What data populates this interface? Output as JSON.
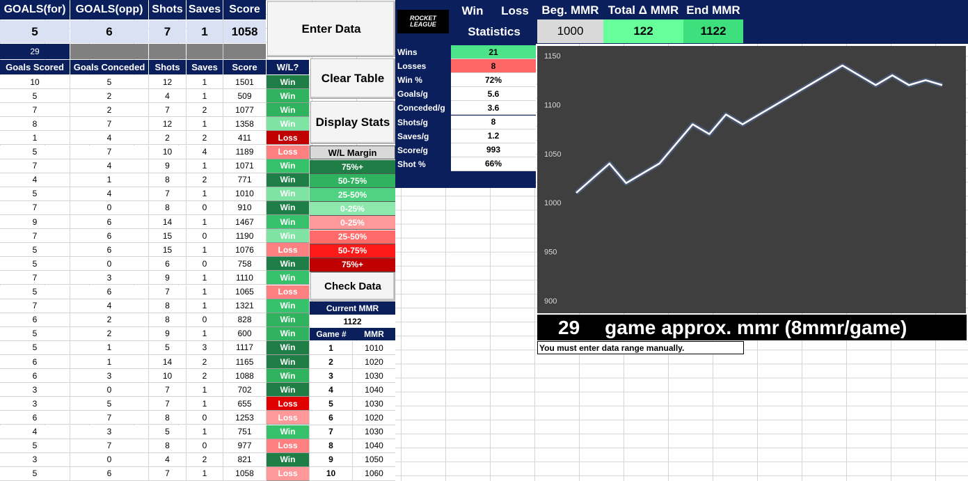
{
  "header": {
    "cols": [
      "GOALS(for)",
      "GOALS(opp)",
      "Shots",
      "Saves",
      "Score"
    ],
    "values": [
      "5",
      "6",
      "7",
      "1",
      "1058"
    ],
    "games_count": "29"
  },
  "table": {
    "cols": [
      "Goals Scored",
      "Goals Conceded",
      "Shots",
      "Saves",
      "Score",
      "W/L?"
    ],
    "rows": [
      {
        "gs": "10",
        "gc": "5",
        "sh": "12",
        "sv": "1",
        "sc": "1501",
        "wl": "Win",
        "color": "#1e7e45"
      },
      {
        "gs": "5",
        "gc": "2",
        "sh": "4",
        "sv": "1",
        "sc": "509",
        "wl": "Win",
        "color": "#2fb35e"
      },
      {
        "gs": "7",
        "gc": "2",
        "sh": "7",
        "sv": "2",
        "sc": "1077",
        "wl": "Win",
        "color": "#2fb35e"
      },
      {
        "gs": "8",
        "gc": "7",
        "sh": "12",
        "sv": "1",
        "sc": "1358",
        "wl": "Win",
        "color": "#7fe3a4"
      },
      {
        "gs": "1",
        "gc": "4",
        "sh": "2",
        "sv": "2",
        "sc": "411",
        "wl": "Loss",
        "color": "#c00000"
      },
      {
        "gs": "5",
        "gc": "7",
        "sh": "10",
        "sv": "4",
        "sc": "1189",
        "wl": "Loss",
        "color": "#ff8080"
      },
      {
        "gs": "7",
        "gc": "4",
        "sh": "9",
        "sv": "1",
        "sc": "1071",
        "wl": "Win",
        "color": "#36c26a"
      },
      {
        "gs": "4",
        "gc": "1",
        "sh": "8",
        "sv": "2",
        "sc": "771",
        "wl": "Win",
        "color": "#1e7e45"
      },
      {
        "gs": "5",
        "gc": "4",
        "sh": "7",
        "sv": "1",
        "sc": "1010",
        "wl": "Win",
        "color": "#7fe3a4"
      },
      {
        "gs": "7",
        "gc": "0",
        "sh": "8",
        "sv": "0",
        "sc": "910",
        "wl": "Win",
        "color": "#1e7e45"
      },
      {
        "gs": "9",
        "gc": "6",
        "sh": "14",
        "sv": "1",
        "sc": "1467",
        "wl": "Win",
        "color": "#36c26a"
      },
      {
        "gs": "7",
        "gc": "6",
        "sh": "15",
        "sv": "0",
        "sc": "1190",
        "wl": "Win",
        "color": "#7fe3a4"
      },
      {
        "gs": "5",
        "gc": "6",
        "sh": "15",
        "sv": "1",
        "sc": "1076",
        "wl": "Loss",
        "color": "#ff8080"
      },
      {
        "gs": "5",
        "gc": "0",
        "sh": "6",
        "sv": "0",
        "sc": "758",
        "wl": "Win",
        "color": "#1e7e45"
      },
      {
        "gs": "7",
        "gc": "3",
        "sh": "9",
        "sv": "1",
        "sc": "1110",
        "wl": "Win",
        "color": "#36c26a"
      },
      {
        "gs": "5",
        "gc": "6",
        "sh": "7",
        "sv": "1",
        "sc": "1065",
        "wl": "Loss",
        "color": "#ff8080"
      },
      {
        "gs": "7",
        "gc": "4",
        "sh": "8",
        "sv": "1",
        "sc": "1321",
        "wl": "Win",
        "color": "#36c26a"
      },
      {
        "gs": "6",
        "gc": "2",
        "sh": "8",
        "sv": "0",
        "sc": "828",
        "wl": "Win",
        "color": "#2fb35e"
      },
      {
        "gs": "5",
        "gc": "2",
        "sh": "9",
        "sv": "1",
        "sc": "600",
        "wl": "Win",
        "color": "#2fb35e"
      },
      {
        "gs": "5",
        "gc": "1",
        "sh": "5",
        "sv": "3",
        "sc": "1117",
        "wl": "Win",
        "color": "#1e7e45"
      },
      {
        "gs": "6",
        "gc": "1",
        "sh": "14",
        "sv": "2",
        "sc": "1165",
        "wl": "Win",
        "color": "#1e7e45"
      },
      {
        "gs": "6",
        "gc": "3",
        "sh": "10",
        "sv": "2",
        "sc": "1088",
        "wl": "Win",
        "color": "#2fb35e"
      },
      {
        "gs": "3",
        "gc": "0",
        "sh": "7",
        "sv": "1",
        "sc": "702",
        "wl": "Win",
        "color": "#1e7e45"
      },
      {
        "gs": "3",
        "gc": "5",
        "sh": "7",
        "sv": "1",
        "sc": "655",
        "wl": "Loss",
        "color": "#e00000"
      },
      {
        "gs": "6",
        "gc": "7",
        "sh": "8",
        "sv": "0",
        "sc": "1253",
        "wl": "Loss",
        "color": "#ff9999"
      },
      {
        "gs": "4",
        "gc": "3",
        "sh": "5",
        "sv": "1",
        "sc": "751",
        "wl": "Win",
        "color": "#36c26a"
      },
      {
        "gs": "5",
        "gc": "7",
        "sh": "8",
        "sv": "0",
        "sc": "977",
        "wl": "Loss",
        "color": "#ff8080"
      },
      {
        "gs": "3",
        "gc": "0",
        "sh": "4",
        "sv": "2",
        "sc": "821",
        "wl": "Win",
        "color": "#1e7e45"
      },
      {
        "gs": "5",
        "gc": "6",
        "sh": "7",
        "sv": "1",
        "sc": "1058",
        "wl": "Loss",
        "color": "#ff9999"
      }
    ]
  },
  "buttons": {
    "enter": "Enter Data",
    "clear": "Clear Table",
    "display": "Display Stats",
    "check": "Check Data"
  },
  "legend": {
    "title": "W/L Margin",
    "items": [
      {
        "label": "75%+",
        "color": "#1e7e45"
      },
      {
        "label": "50-75%",
        "color": "#2fb35e"
      },
      {
        "label": "25-50%",
        "color": "#4fd281"
      },
      {
        "label": "0-25%",
        "color": "#8ce8ac"
      },
      {
        "label": "0-25%",
        "color": "#ff9999"
      },
      {
        "label": "25-50%",
        "color": "#ff6b6b"
      },
      {
        "label": "50-75%",
        "color": "#ff1a1a"
      },
      {
        "label": "75%+",
        "color": "#c00000"
      }
    ]
  },
  "current_mmr": {
    "label": "Current MMR",
    "value": "1122",
    "col_game": "Game #",
    "col_mmr": "MMR",
    "rows": [
      {
        "g": "1",
        "m": "1010"
      },
      {
        "g": "2",
        "m": "1020"
      },
      {
        "g": "3",
        "m": "1030"
      },
      {
        "g": "4",
        "m": "1040"
      },
      {
        "g": "5",
        "m": "1030"
      },
      {
        "g": "6",
        "m": "1020"
      },
      {
        "g": "7",
        "m": "1030"
      },
      {
        "g": "8",
        "m": "1040"
      },
      {
        "g": "9",
        "m": "1050"
      },
      {
        "g": "10",
        "m": "1060"
      }
    ]
  },
  "logo": {
    "line1": "ROCKET",
    "line2": "LEAGUE"
  },
  "stats_header": {
    "win": "Win",
    "loss": "Loss",
    "statistics": "Statistics"
  },
  "stats": [
    {
      "label": "Wins",
      "value": "21",
      "bg": "#4de38a"
    },
    {
      "label": "Losses",
      "value": "8",
      "bg": "#ff6666"
    },
    {
      "label": "Win %",
      "value": "72%",
      "bg": "#ffffff"
    },
    {
      "label": "Goals/g",
      "value": "5.6",
      "bg": "#ffffff"
    },
    {
      "label": "Conceded/g",
      "value": "3.6",
      "bg": "#ffffff"
    },
    {
      "label": "Shots/g",
      "value": "8",
      "bg": "#ffffff"
    },
    {
      "label": "Saves/g",
      "value": "1.2",
      "bg": "#ffffff"
    },
    {
      "label": "Score/g",
      "value": "993",
      "bg": "#ffffff"
    },
    {
      "label": "Shot %",
      "value": "66%",
      "bg": "#ffffff"
    }
  ],
  "mmr_header": {
    "beg_label": "Beg. MMR",
    "total_label": "Total Δ MMR",
    "end_label": "End MMR",
    "beg": "1000",
    "total": "122",
    "end": "1122"
  },
  "chart_data": {
    "type": "line",
    "y": [
      1010,
      1025,
      1040,
      1020,
      1030,
      1040,
      1060,
      1080,
      1070,
      1090,
      1080,
      1090,
      1100,
      1110,
      1120,
      1130,
      1140,
      1130,
      1120,
      1130,
      1120,
      1125,
      1120
    ],
    "ylim": [
      900,
      1150
    ],
    "yticks": [
      900,
      950,
      1000,
      1050,
      1100,
      1150
    ],
    "line_color": "#ffffff",
    "background": "#3f3f3f"
  },
  "approx": {
    "count": "29",
    "text": "game approx. mmr (8mmr/game)",
    "note": "You must enter data range manually."
  }
}
